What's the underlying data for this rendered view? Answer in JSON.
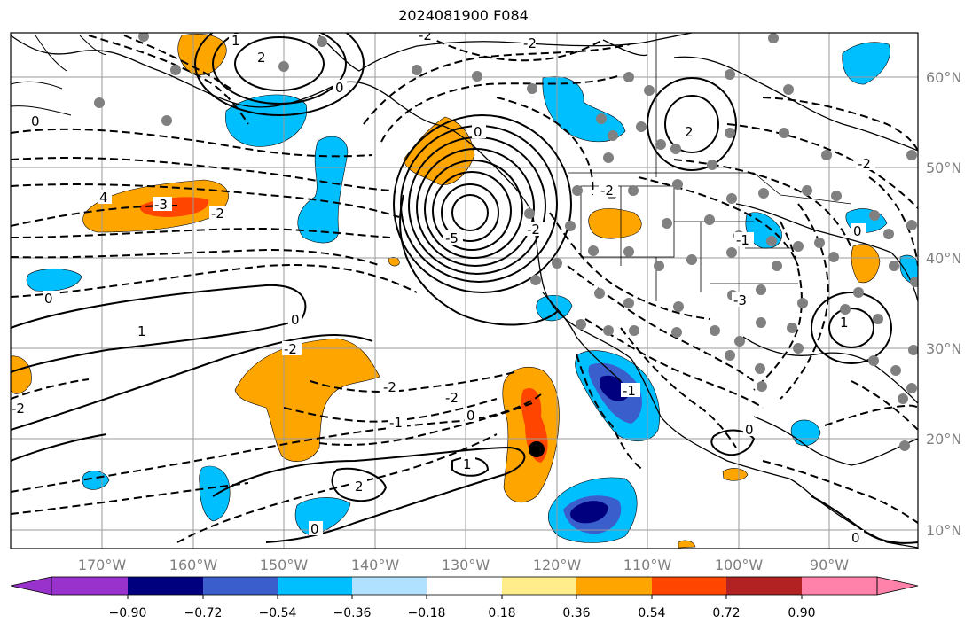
{
  "title": "2024081900 F084",
  "map": {
    "lon_labels": [
      "170°W",
      "160°W",
      "150°W",
      "140°W",
      "130°W",
      "120°W",
      "110°W",
      "100°W",
      "90°W"
    ],
    "lat_labels": [
      "60°N",
      "50°N",
      "40°N",
      "30°N",
      "20°N",
      "10°N"
    ],
    "contour_labels": [
      "1",
      "2",
      "-2",
      "0",
      "0",
      "-3",
      "-2",
      "4",
      "0",
      "0",
      "-5",
      "-2",
      "1",
      "0",
      "-2",
      "-2",
      "-1",
      "0",
      "1",
      "-2",
      "-1",
      "-2",
      "-1",
      "0",
      "2",
      "-2",
      "-3",
      "0",
      "-2",
      "1",
      "2",
      "-2",
      "0",
      "0"
    ],
    "anomaly_colors": {
      "strong_neg": "#00007f",
      "mid_neg": "#3a5fcd",
      "neg": "#00bfff",
      "weak_pos": "#ffa500",
      "pos": "#ff4500"
    },
    "marker": "black-dot"
  },
  "colorbar": {
    "ticks": [
      "−0.90",
      "−0.72",
      "−0.54",
      "−0.36",
      "−0.18",
      "0.18",
      "0.36",
      "0.54",
      "0.72",
      "0.90"
    ],
    "colors": [
      "#9932cc",
      "#00007f",
      "#3a5fcd",
      "#00bfff",
      "#b0e2ff",
      "#ffffff",
      "#ffec8b",
      "#ffa500",
      "#ff4500",
      "#b22222",
      "#ff82ab"
    ]
  }
}
